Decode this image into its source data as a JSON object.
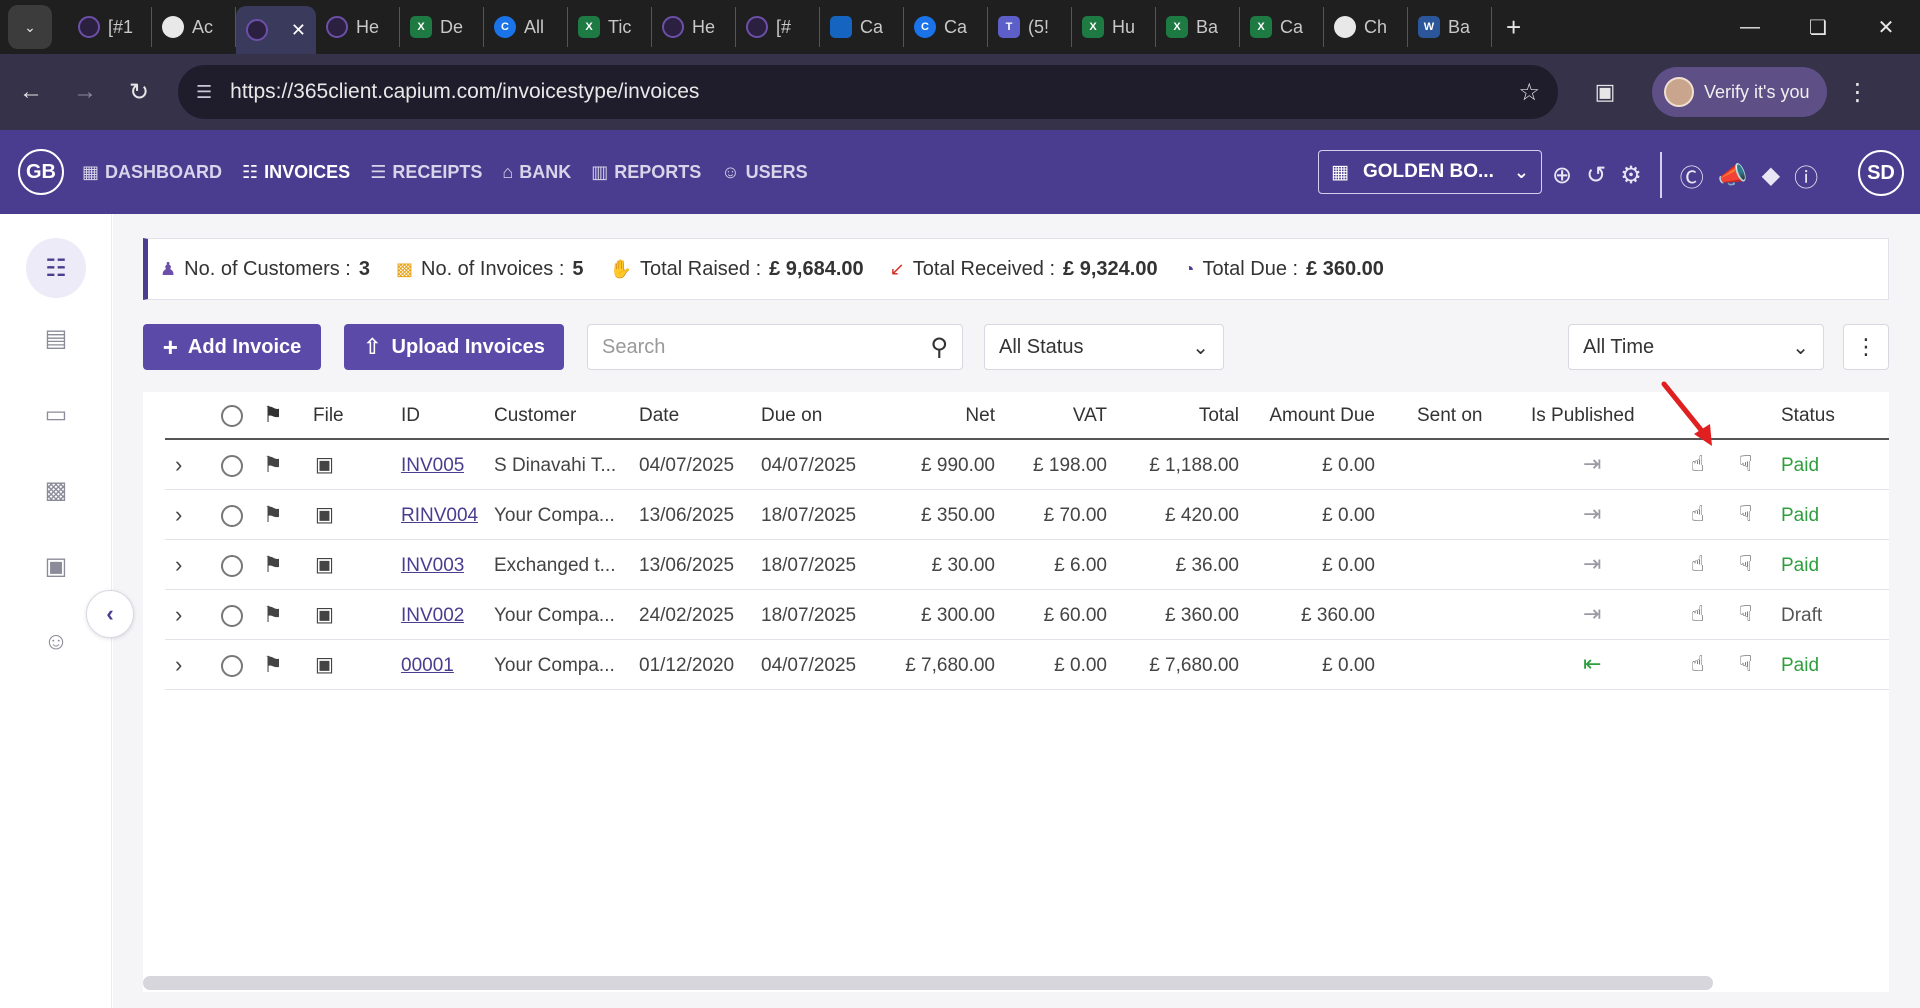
{
  "browser": {
    "tabs": [
      {
        "label": "[#1",
        "icon": "capium"
      },
      {
        "label": "Ac",
        "icon": "white"
      },
      {
        "label": "",
        "icon": "capium",
        "active": true
      },
      {
        "label": "He",
        "icon": "capium"
      },
      {
        "label": "De",
        "icon": "excel"
      },
      {
        "label": "All",
        "icon": "blue"
      },
      {
        "label": "Tic",
        "icon": "excel"
      },
      {
        "label": "He",
        "icon": "capium"
      },
      {
        "label": "[#",
        "icon": "capium"
      },
      {
        "label": "Ca",
        "icon": "box"
      },
      {
        "label": "Ca",
        "icon": "blue"
      },
      {
        "label": "(5!",
        "icon": "teams"
      },
      {
        "label": "Hu",
        "icon": "excel"
      },
      {
        "label": "Ba",
        "icon": "excel"
      },
      {
        "label": "Ca",
        "icon": "excel"
      },
      {
        "label": "Ch",
        "icon": "white"
      },
      {
        "label": "Ba",
        "icon": "word"
      }
    ],
    "url": "https://365client.capium.com/invoicestype/invoices",
    "verify_label": "Verify it's you"
  },
  "app": {
    "logo": "GB",
    "nav": [
      {
        "label": "DASHBOARD",
        "icon": "grid-icon"
      },
      {
        "label": "INVOICES",
        "icon": "invoice-icon",
        "active": true
      },
      {
        "label": "RECEIPTS",
        "icon": "receipt-icon"
      },
      {
        "label": "BANK",
        "icon": "bank-icon"
      },
      {
        "label": "REPORTS",
        "icon": "reports-icon"
      },
      {
        "label": "USERS",
        "icon": "users-icon"
      }
    ],
    "company": "GOLDEN BO...",
    "user_initials": "SD"
  },
  "summary": {
    "customers_label": "No. of Customers :",
    "customers_value": "3",
    "invoices_label": "No. of Invoices :",
    "invoices_value": "5",
    "raised_label": "Total Raised :",
    "raised_value": "£ 9,684.00",
    "received_label": "Total Received :",
    "received_value": "£ 9,324.00",
    "due_label": "Total Due :",
    "due_value": "£ 360.00"
  },
  "toolbar": {
    "add_label": "Add Invoice",
    "upload_label": "Upload Invoices",
    "search_placeholder": "Search",
    "status_filter": "All Status",
    "time_filter": "All Time"
  },
  "table": {
    "headers": {
      "file": "File",
      "id": "ID",
      "customer": "Customer",
      "date": "Date",
      "due": "Due on",
      "net": "Net",
      "vat": "VAT",
      "total": "Total",
      "amount_due": "Amount Due",
      "sent": "Sent on",
      "published": "Is Published",
      "status": "Status"
    },
    "rows": [
      {
        "id": "INV005",
        "customer": "S Dinavahi T...",
        "date": "04/07/2025",
        "due": "04/07/2025",
        "net": "£ 990.00",
        "vat": "£ 198.00",
        "total": "£ 1,188.00",
        "amount_due": "£ 0.00",
        "sent": "",
        "status": "Paid"
      },
      {
        "id": "RINV004",
        "customer": "Your Compa...",
        "date": "13/06/2025",
        "due": "18/07/2025",
        "net": "£ 350.00",
        "vat": "£ 70.00",
        "total": "£ 420.00",
        "amount_due": "£ 0.00",
        "sent": "",
        "status": "Paid"
      },
      {
        "id": "INV003",
        "customer": "Exchanged t...",
        "date": "13/06/2025",
        "due": "18/07/2025",
        "net": "£ 30.00",
        "vat": "£ 6.00",
        "total": "£ 36.00",
        "amount_due": "£ 0.00",
        "sent": "",
        "status": "Paid"
      },
      {
        "id": "INV002",
        "customer": "Your Compa...",
        "date": "24/02/2025",
        "due": "18/07/2025",
        "net": "£ 300.00",
        "vat": "£ 60.00",
        "total": "£ 360.00",
        "amount_due": "£ 360.00",
        "sent": "",
        "status": "Draft"
      },
      {
        "id": "00001",
        "customer": "Your Compa...",
        "date": "01/12/2020",
        "due": "04/07/2025",
        "net": "£ 7,680.00",
        "vat": "£ 0.00",
        "total": "£ 7,680.00",
        "amount_due": "£ 0.00",
        "sent": "",
        "status": "Paid"
      }
    ]
  }
}
